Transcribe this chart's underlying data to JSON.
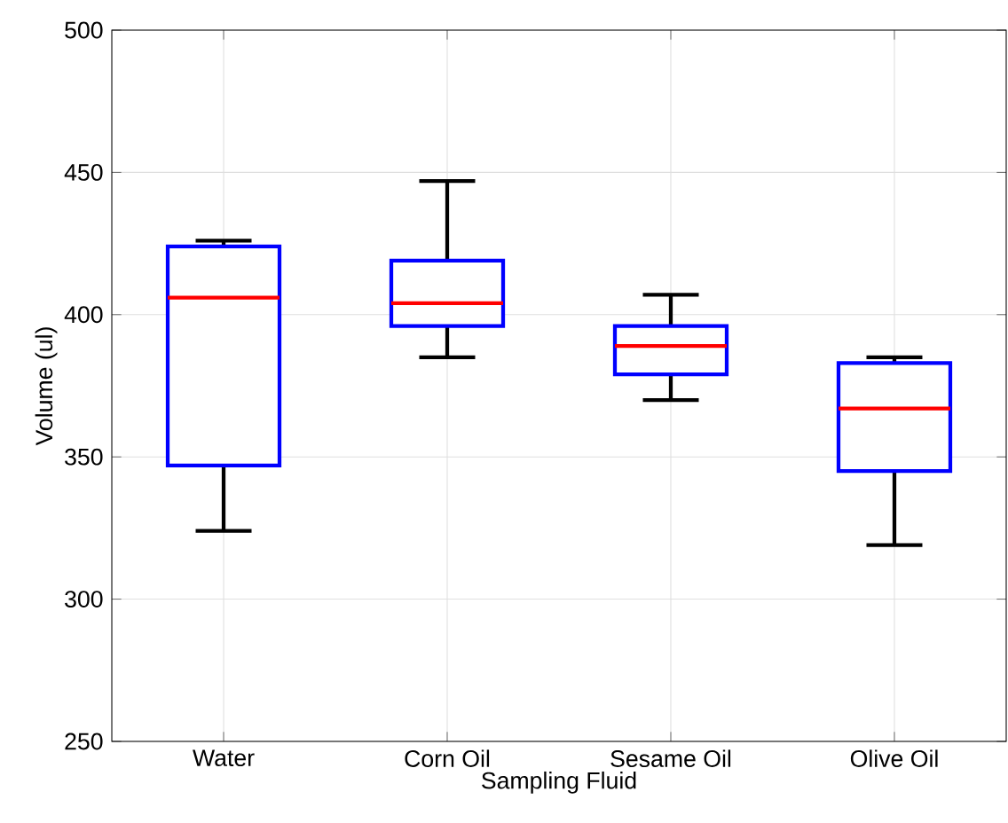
{
  "chart_data": {
    "type": "box",
    "xlabel": "Sampling Fluid",
    "ylabel": "Volume (ul)",
    "categories": [
      "Water",
      "Corn Oil",
      "Sesame Oil",
      "Olive Oil"
    ],
    "ylim": [
      250,
      500
    ],
    "yticks": [
      250,
      300,
      350,
      400,
      450,
      500
    ],
    "grid": true,
    "series": [
      {
        "color": "#0000ff",
        "boxes": [
          {
            "low": 324,
            "q1": 347,
            "median": 406,
            "q3": 424,
            "high": 426
          },
          {
            "low": 385,
            "q1": 396,
            "median": 404,
            "q3": 419,
            "high": 447
          },
          {
            "low": 370,
            "q1": 379,
            "median": 389,
            "q3": 396,
            "high": 407
          },
          {
            "low": 319,
            "q1": 345,
            "median": 367,
            "q3": 383,
            "high": 385
          }
        ]
      }
    ]
  }
}
